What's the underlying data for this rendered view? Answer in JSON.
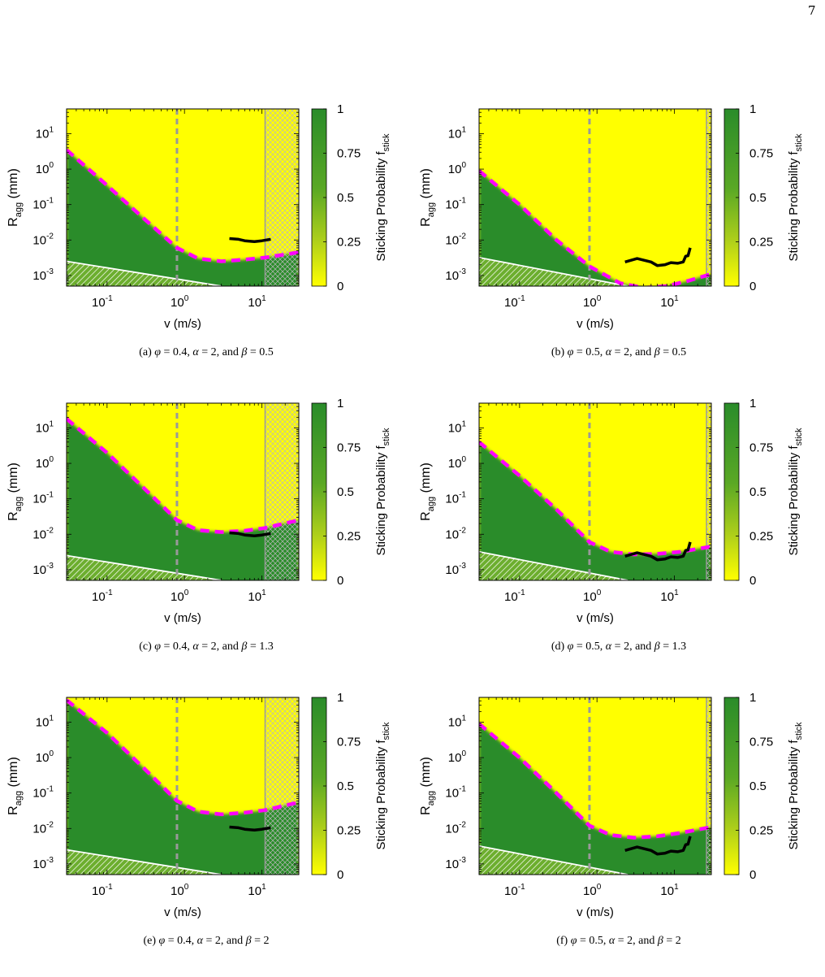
{
  "page": {
    "number": "7"
  },
  "figure": {
    "colorbar_label": "Sticking Probability",
    "colorbar_symbol": "f",
    "colorbar_symbol_sub": "stick",
    "colorbar_ticks": [
      "1",
      "0.75",
      "0.5",
      "0.25",
      "0"
    ],
    "x_label": "v (m/s)",
    "y_label_main": "R",
    "y_label_sub": "agg",
    "y_label_unit": " (mm)",
    "colors": {
      "stick": "#2a8c2a",
      "bounce": "#ffff00",
      "threshold": "#ff00ff",
      "guide": "#999999",
      "track": "#000000",
      "floor_line": "#ffffff"
    }
  },
  "chart_data": [
    {
      "id": "a",
      "type": "heatmap",
      "caption_label": "(a)",
      "phi": "0.4",
      "alpha": "2",
      "beta": "0.5",
      "xscale": "log",
      "yscale": "log",
      "xlim": [
        0.03,
        30
      ],
      "ylim": [
        0.0005,
        50
      ],
      "x_ticks": [
        0.1,
        1,
        10
      ],
      "y_ticks": [
        0.001,
        0.01,
        0.1,
        1,
        10
      ],
      "colorbar_range": [
        0,
        1
      ],
      "vline_dashed": 0.8,
      "vline_solid": 11,
      "boundary": {
        "x": [
          0.03,
          0.1,
          0.3,
          0.8,
          1.5,
          3,
          6,
          11,
          30
        ],
        "y": [
          3.5,
          0.35,
          0.04,
          0.006,
          0.003,
          0.0025,
          0.0028,
          0.0032,
          0.0045
        ]
      },
      "track": {
        "x": [
          3.8,
          5,
          6,
          8,
          10,
          13
        ],
        "y": [
          0.011,
          0.0105,
          0.0095,
          0.009,
          0.0095,
          0.0105
        ]
      },
      "floor_line": {
        "x": [
          0.03,
          3
        ],
        "y": [
          0.0025,
          0.0005
        ]
      }
    },
    {
      "id": "b",
      "type": "heatmap",
      "caption_label": "(b)",
      "phi": "0.5",
      "alpha": "2",
      "beta": "0.5",
      "xscale": "log",
      "yscale": "log",
      "xlim": [
        0.03,
        30
      ],
      "ylim": [
        0.0005,
        50
      ],
      "x_ticks": [
        0.1,
        1,
        10
      ],
      "y_ticks": [
        0.001,
        0.01,
        0.1,
        1,
        10
      ],
      "colorbar_range": [
        0,
        1
      ],
      "vline_dashed": 0.8,
      "vline_solid": 26,
      "boundary": {
        "x": [
          0.03,
          0.1,
          0.3,
          0.8,
          2,
          4,
          8,
          15,
          30
        ],
        "y": [
          0.9,
          0.1,
          0.01,
          0.0018,
          0.0006,
          0.00045,
          0.0005,
          0.0007,
          0.0011
        ]
      },
      "track": {
        "x": [
          2.3,
          3.3,
          5,
          6,
          7.5,
          9,
          11,
          13,
          14,
          15,
          16
        ],
        "y": [
          0.0024,
          0.003,
          0.0024,
          0.0019,
          0.002,
          0.0023,
          0.0022,
          0.0024,
          0.0035,
          0.0036,
          0.006
        ]
      },
      "floor_line": {
        "x": [
          0.03,
          2.5
        ],
        "y": [
          0.0032,
          0.0005
        ]
      }
    },
    {
      "id": "c",
      "type": "heatmap",
      "caption_label": "(c)",
      "phi": "0.4",
      "alpha": "2",
      "beta": "1.3",
      "xscale": "log",
      "yscale": "log",
      "xlim": [
        0.03,
        30
      ],
      "ylim": [
        0.0005,
        50
      ],
      "x_ticks": [
        0.1,
        1,
        10
      ],
      "y_ticks": [
        0.001,
        0.01,
        0.1,
        1,
        10
      ],
      "colorbar_range": [
        0,
        1
      ],
      "vline_dashed": 0.8,
      "vline_solid": 11,
      "boundary": {
        "x": [
          0.03,
          0.1,
          0.3,
          0.8,
          1.5,
          3,
          6,
          11,
          30
        ],
        "y": [
          18,
          2,
          0.2,
          0.025,
          0.013,
          0.0115,
          0.0125,
          0.015,
          0.025
        ]
      },
      "track": {
        "x": [
          3.8,
          5,
          6,
          8,
          10,
          13
        ],
        "y": [
          0.011,
          0.0105,
          0.0095,
          0.009,
          0.0095,
          0.0105
        ]
      },
      "floor_line": {
        "x": [
          0.03,
          3
        ],
        "y": [
          0.0025,
          0.0005
        ]
      }
    },
    {
      "id": "d",
      "type": "heatmap",
      "caption_label": "(d)",
      "phi": "0.5",
      "alpha": "2",
      "beta": "1.3",
      "xscale": "log",
      "yscale": "log",
      "xlim": [
        0.03,
        30
      ],
      "ylim": [
        0.0005,
        50
      ],
      "x_ticks": [
        0.1,
        1,
        10
      ],
      "y_ticks": [
        0.001,
        0.01,
        0.1,
        1,
        10
      ],
      "colorbar_range": [
        0,
        1
      ],
      "vline_dashed": 0.8,
      "vline_solid": 26,
      "boundary": {
        "x": [
          0.03,
          0.1,
          0.3,
          0.8,
          1.5,
          3,
          6,
          12,
          30
        ],
        "y": [
          4,
          0.45,
          0.05,
          0.006,
          0.0032,
          0.0027,
          0.0028,
          0.0032,
          0.0045
        ]
      },
      "track": {
        "x": [
          2.3,
          3.3,
          5,
          6,
          7.5,
          9,
          11,
          13,
          14,
          15,
          16
        ],
        "y": [
          0.0024,
          0.003,
          0.0024,
          0.0019,
          0.002,
          0.0023,
          0.0022,
          0.0024,
          0.0035,
          0.0036,
          0.006
        ]
      },
      "floor_line": {
        "x": [
          0.03,
          2.5
        ],
        "y": [
          0.0032,
          0.0005
        ]
      }
    },
    {
      "id": "e",
      "type": "heatmap",
      "caption_label": "(e)",
      "phi": "0.4",
      "alpha": "2",
      "beta": "2",
      "xscale": "log",
      "yscale": "log",
      "xlim": [
        0.03,
        30
      ],
      "ylim": [
        0.0005,
        50
      ],
      "x_ticks": [
        0.1,
        1,
        10
      ],
      "y_ticks": [
        0.001,
        0.01,
        0.1,
        1,
        10
      ],
      "colorbar_range": [
        0,
        1
      ],
      "vline_dashed": 0.8,
      "vline_solid": 11,
      "boundary": {
        "x": [
          0.03,
          0.1,
          0.3,
          0.8,
          1.5,
          3,
          6,
          11,
          30
        ],
        "y": [
          42,
          5,
          0.5,
          0.06,
          0.03,
          0.025,
          0.028,
          0.033,
          0.055
        ]
      },
      "track": {
        "x": [
          3.8,
          5,
          6,
          8,
          10,
          13
        ],
        "y": [
          0.011,
          0.0105,
          0.0095,
          0.009,
          0.0095,
          0.0105
        ]
      },
      "floor_line": {
        "x": [
          0.03,
          3
        ],
        "y": [
          0.0025,
          0.0005
        ]
      }
    },
    {
      "id": "f",
      "type": "heatmap",
      "caption_label": "(f)",
      "phi": "0.5",
      "alpha": "2",
      "beta": "2",
      "xscale": "log",
      "yscale": "log",
      "xlim": [
        0.03,
        30
      ],
      "ylim": [
        0.0005,
        50
      ],
      "x_ticks": [
        0.1,
        1,
        10
      ],
      "y_ticks": [
        0.001,
        0.01,
        0.1,
        1,
        10
      ],
      "colorbar_range": [
        0,
        1
      ],
      "vline_dashed": 0.8,
      "vline_solid": 26,
      "boundary": {
        "x": [
          0.03,
          0.1,
          0.3,
          0.8,
          1.5,
          3,
          6,
          12,
          30
        ],
        "y": [
          9,
          1,
          0.1,
          0.012,
          0.0065,
          0.0055,
          0.006,
          0.0075,
          0.011
        ]
      },
      "track": {
        "x": [
          2.3,
          3.3,
          5,
          6,
          7.5,
          9,
          11,
          13,
          14,
          15,
          16
        ],
        "y": [
          0.0024,
          0.003,
          0.0024,
          0.0019,
          0.002,
          0.0023,
          0.0022,
          0.0024,
          0.0035,
          0.0036,
          0.006
        ]
      },
      "floor_line": {
        "x": [
          0.03,
          2.5
        ],
        "y": [
          0.0032,
          0.0005
        ]
      }
    }
  ]
}
